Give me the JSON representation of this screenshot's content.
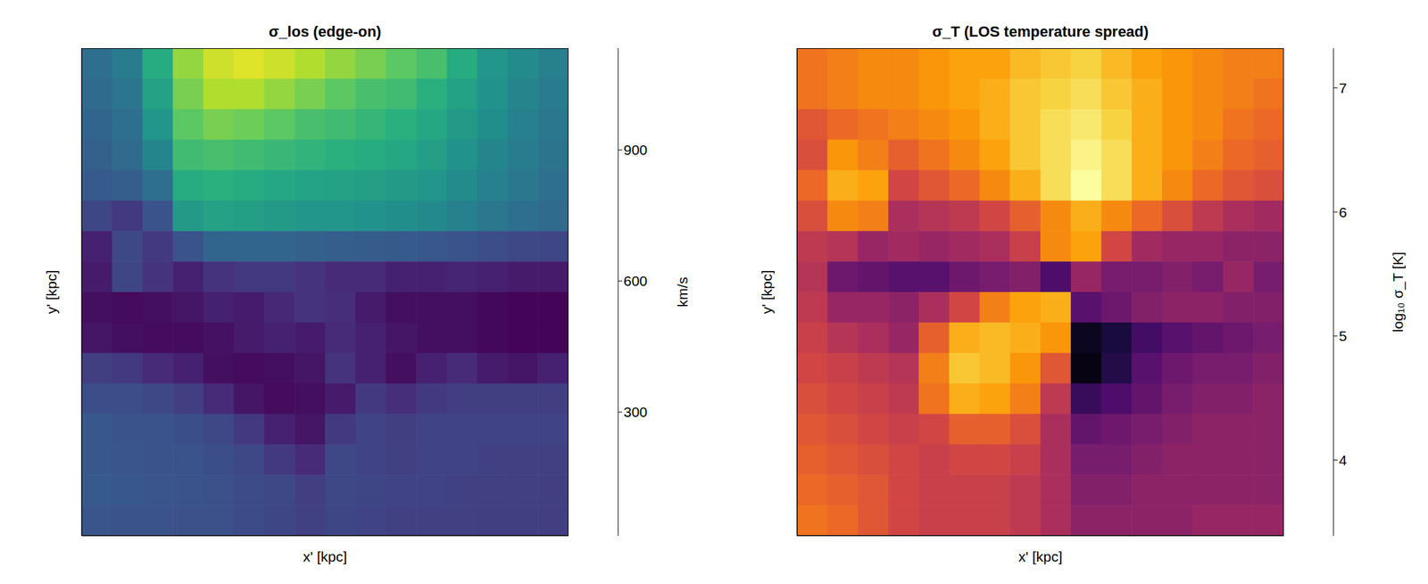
{
  "chart_data": [
    {
      "type": "heatmap",
      "title": "σ_los  (edge-on)",
      "x_label": "x' [kpc]",
      "y_label": "y' [kpc]",
      "tick_labels": false,
      "cells": [
        [
          420,
          480,
          700,
          950,
          1050,
          1080,
          1050,
          1000,
          950,
          900,
          850,
          800,
          700,
          600,
          550,
          500
        ],
        [
          400,
          450,
          650,
          900,
          1000,
          1000,
          950,
          900,
          850,
          800,
          780,
          720,
          650,
          580,
          520,
          480
        ],
        [
          380,
          420,
          600,
          850,
          900,
          880,
          850,
          800,
          780,
          750,
          720,
          680,
          620,
          560,
          500,
          460
        ],
        [
          360,
          400,
          520,
          780,
          800,
          780,
          760,
          740,
          720,
          700,
          680,
          640,
          580,
          520,
          480,
          440
        ],
        [
          330,
          350,
          420,
          700,
          720,
          700,
          680,
          660,
          650,
          640,
          620,
          600,
          550,
          500,
          460,
          420
        ],
        [
          250,
          200,
          300,
          620,
          650,
          640,
          620,
          600,
          600,
          580,
          560,
          540,
          500,
          460,
          420,
          400
        ],
        [
          120,
          260,
          200,
          300,
          380,
          380,
          380,
          360,
          350,
          340,
          330,
          320,
          300,
          280,
          260,
          250
        ],
        [
          100,
          250,
          180,
          120,
          180,
          200,
          200,
          180,
          150,
          150,
          120,
          120,
          130,
          120,
          100,
          100
        ],
        [
          60,
          50,
          60,
          80,
          120,
          100,
          140,
          180,
          160,
          100,
          60,
          60,
          60,
          40,
          30,
          30
        ],
        [
          80,
          60,
          50,
          50,
          70,
          100,
          120,
          100,
          150,
          120,
          80,
          60,
          60,
          40,
          30,
          30
        ],
        [
          220,
          200,
          150,
          120,
          60,
          50,
          60,
          80,
          180,
          120,
          60,
          120,
          150,
          100,
          80,
          120
        ],
        [
          280,
          280,
          260,
          220,
          150,
          80,
          50,
          60,
          100,
          200,
          160,
          200,
          220,
          220,
          220,
          220
        ],
        [
          320,
          300,
          300,
          280,
          260,
          200,
          120,
          80,
          200,
          240,
          220,
          240,
          240,
          240,
          240,
          240
        ],
        [
          320,
          310,
          300,
          300,
          280,
          260,
          200,
          150,
          260,
          240,
          230,
          240,
          240,
          230,
          230,
          230
        ],
        [
          330,
          320,
          310,
          300,
          290,
          270,
          260,
          220,
          260,
          250,
          240,
          240,
          230,
          230,
          230,
          220
        ],
        [
          310,
          300,
          300,
          290,
          290,
          270,
          250,
          230,
          250,
          240,
          230,
          230,
          230,
          220,
          220,
          220
        ]
      ],
      "colorbar": {
        "label": "km/s",
        "range": [
          17,
          1133
        ],
        "ticks": [
          300,
          600,
          900
        ],
        "color": "viridis"
      }
    },
    {
      "type": "heatmap",
      "title": "σ_T  (LOS temperature spread)",
      "x_label": "x' [kpc]",
      "y_label": "y' [kpc]",
      "tick_labels": false,
      "cells": [
        [
          6.1,
          6.2,
          6.3,
          6.3,
          6.4,
          6.5,
          6.5,
          6.7,
          6.8,
          6.9,
          6.7,
          6.5,
          6.4,
          6.3,
          6.2,
          6.2
        ],
        [
          6.1,
          6.2,
          6.3,
          6.3,
          6.4,
          6.5,
          6.6,
          6.8,
          6.9,
          7.0,
          6.8,
          6.6,
          6.4,
          6.3,
          6.2,
          6.1
        ],
        [
          5.8,
          6.0,
          6.1,
          6.2,
          6.3,
          6.4,
          6.6,
          6.8,
          7.0,
          7.1,
          6.9,
          6.6,
          6.4,
          6.3,
          6.1,
          6.0
        ],
        [
          5.7,
          6.4,
          6.2,
          5.9,
          6.1,
          6.3,
          6.5,
          6.8,
          7.0,
          7.2,
          7.0,
          6.6,
          6.4,
          6.2,
          6.0,
          5.9
        ],
        [
          6.0,
          6.6,
          6.5,
          5.6,
          5.8,
          6.0,
          6.3,
          6.6,
          7.0,
          7.3,
          7.0,
          6.6,
          6.3,
          6.0,
          5.8,
          5.7
        ],
        [
          5.7,
          6.3,
          6.2,
          5.2,
          5.3,
          5.4,
          5.6,
          5.9,
          6.3,
          6.6,
          6.3,
          6.0,
          5.7,
          5.4,
          5.2,
          5.1
        ],
        [
          5.4,
          5.3,
          5.0,
          5.1,
          5.0,
          5.1,
          5.2,
          5.5,
          6.3,
          6.5,
          5.6,
          5.1,
          5.0,
          5.0,
          4.9,
          4.9
        ],
        [
          5.3,
          4.6,
          4.5,
          4.4,
          4.4,
          4.6,
          4.7,
          4.8,
          4.3,
          5.0,
          4.7,
          4.7,
          4.8,
          4.7,
          5.0,
          4.7
        ],
        [
          5.4,
          5.0,
          5.0,
          4.9,
          5.2,
          5.6,
          6.2,
          6.5,
          6.6,
          4.4,
          4.6,
          4.8,
          4.9,
          4.9,
          4.8,
          4.8
        ],
        [
          5.5,
          5.3,
          5.2,
          5.0,
          5.9,
          6.6,
          6.7,
          6.6,
          6.4,
          3.6,
          3.8,
          4.2,
          4.4,
          4.5,
          4.6,
          4.7
        ],
        [
          5.6,
          5.5,
          5.4,
          5.3,
          6.2,
          6.8,
          6.7,
          6.4,
          5.8,
          3.5,
          3.9,
          4.4,
          4.6,
          4.7,
          4.7,
          4.8
        ],
        [
          5.7,
          5.6,
          5.5,
          5.4,
          6.1,
          6.6,
          6.5,
          6.2,
          5.4,
          4.1,
          4.3,
          4.5,
          4.7,
          4.8,
          4.8,
          4.9
        ],
        [
          5.8,
          5.7,
          5.6,
          5.5,
          5.6,
          5.9,
          5.9,
          5.7,
          5.2,
          4.5,
          4.6,
          4.7,
          4.8,
          4.9,
          4.9,
          4.9
        ],
        [
          5.9,
          5.8,
          5.7,
          5.6,
          5.5,
          5.6,
          5.6,
          5.5,
          5.2,
          4.7,
          4.7,
          4.8,
          4.9,
          4.9,
          4.9,
          4.9
        ],
        [
          6.0,
          5.9,
          5.8,
          5.6,
          5.5,
          5.5,
          5.5,
          5.4,
          5.2,
          4.8,
          4.8,
          4.9,
          4.9,
          4.9,
          4.9,
          4.9
        ],
        [
          6.1,
          6.0,
          5.8,
          5.6,
          5.5,
          5.5,
          5.5,
          5.4,
          5.2,
          4.9,
          4.9,
          4.9,
          4.9,
          5.0,
          5.0,
          5.0
        ]
      ],
      "colorbar": {
        "label": "log₁₀ σ_T [K]",
        "range": [
          3.39,
          7.32
        ],
        "ticks": [
          4,
          5,
          6,
          7
        ],
        "color": "inferno"
      }
    }
  ]
}
